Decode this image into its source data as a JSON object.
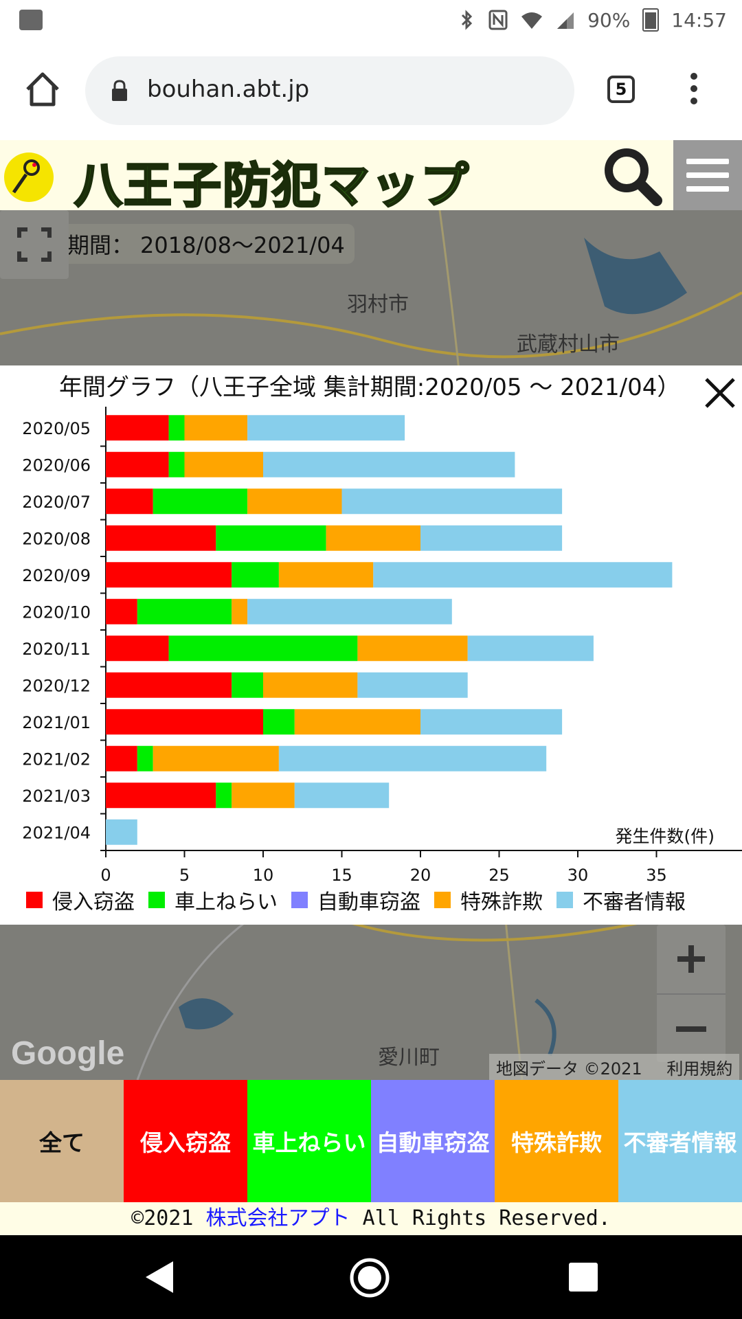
{
  "status_bar": {
    "battery": "90%",
    "time": "14:57"
  },
  "browser": {
    "url": "bouhan.abt.jp",
    "tab_count": "5"
  },
  "site": {
    "title": "八王子防犯マップ"
  },
  "map": {
    "period_label": "表示期間：",
    "period_value": "2018/08～2021/04",
    "places": [
      "羽村市",
      "武蔵村山市",
      "愛川町"
    ],
    "attribution": "地図データ ©2021",
    "terms": "利用規約",
    "google_logo": "Google"
  },
  "chart": {
    "title": "年間グラフ（八王子全域 集計期間:2020/05 ～ 2021/04）",
    "x_axis_label": "発生件数(件)"
  },
  "chart_data": {
    "type": "bar",
    "orientation": "horizontal",
    "stacked": true,
    "categories": [
      "2020/05",
      "2020/06",
      "2020/07",
      "2020/08",
      "2020/09",
      "2020/10",
      "2020/11",
      "2020/12",
      "2021/01",
      "2021/02",
      "2021/03",
      "2021/04"
    ],
    "series": [
      {
        "name": "侵入窃盗",
        "color": "#ff0000",
        "values": [
          4,
          4,
          3,
          7,
          8,
          2,
          4,
          8,
          10,
          2,
          7,
          0
        ]
      },
      {
        "name": "車上ねらい",
        "color": "#00ee00",
        "values": [
          1,
          1,
          6,
          7,
          3,
          6,
          12,
          2,
          2,
          1,
          1,
          0
        ]
      },
      {
        "name": "自動車窃盗",
        "color": "#8080ff",
        "values": [
          0,
          0,
          0,
          0,
          0,
          0,
          0,
          0,
          0,
          0,
          0,
          0
        ]
      },
      {
        "name": "特殊詐欺",
        "color": "#ffa500",
        "values": [
          4,
          5,
          6,
          6,
          6,
          1,
          7,
          6,
          8,
          8,
          4,
          0
        ]
      },
      {
        "name": "不審者情報",
        "color": "#87ceeb",
        "values": [
          10,
          16,
          14,
          9,
          19,
          13,
          8,
          7,
          9,
          17,
          6,
          2
        ]
      }
    ],
    "xlim": [
      0,
      39
    ],
    "x_ticks": [
      0,
      5,
      10,
      15,
      20,
      25,
      30,
      35
    ],
    "xlabel": "発生件数(件)",
    "legend_position": "bottom"
  },
  "category_bar": [
    {
      "label": "全て",
      "color": "#d2b48c"
    },
    {
      "label": "侵入窃盗",
      "color": "#ff0000"
    },
    {
      "label": "車上ねらい",
      "color": "#00ff00"
    },
    {
      "label": "自動車窃盗",
      "color": "#8080ff"
    },
    {
      "label": "特殊詐欺",
      "color": "#ffa500"
    },
    {
      "label": "不審者情報",
      "color": "#87ceeb"
    }
  ],
  "footer": {
    "copyright": "©2021",
    "company": "株式会社アプト",
    "rights": "All Rights Reserved."
  }
}
